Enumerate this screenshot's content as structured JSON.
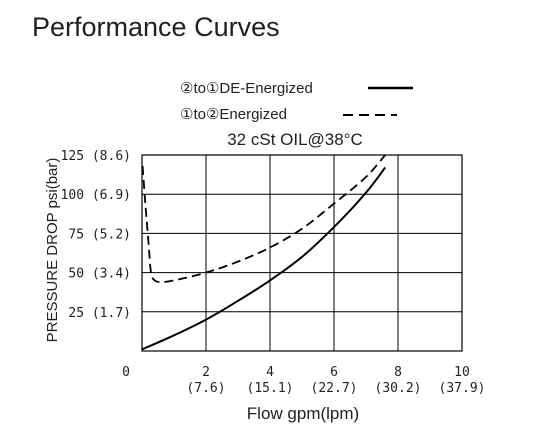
{
  "page_title": "Performance Curves",
  "chart_data": {
    "type": "line",
    "subtitle": "32 cSt OIL@38°C",
    "xlabel": "Flow gpm(lpm)",
    "ylabel": "PRESSURE DROP psi(bar)",
    "xlim": [
      0,
      10
    ],
    "ylim": [
      0,
      125
    ],
    "grid": true,
    "legend_position": "top",
    "x_ticks": [
      {
        "value": 0,
        "label": "0",
        "sublabel": ""
      },
      {
        "value": 2,
        "label": "2",
        "sublabel": "(7.6)"
      },
      {
        "value": 4,
        "label": "4",
        "sublabel": "(15.1)"
      },
      {
        "value": 6,
        "label": "6",
        "sublabel": "(22.7)"
      },
      {
        "value": 8,
        "label": "8",
        "sublabel": "(30.2)"
      },
      {
        "value": 10,
        "label": "10",
        "sublabel": "(37.9)"
      }
    ],
    "y_ticks": [
      {
        "value": 25,
        "label": "25 (1.7)"
      },
      {
        "value": 50,
        "label": "50 (3.4)"
      },
      {
        "value": 75,
        "label": "75 (5.2)"
      },
      {
        "value": 100,
        "label": "100 (6.9)"
      },
      {
        "value": 125,
        "label": "125 (8.6)"
      }
    ],
    "series": [
      {
        "name": "②to①DE-Energized",
        "style": "solid",
        "color": "#000000",
        "x": [
          0,
          1,
          2,
          3,
          4,
          5,
          6,
          7,
          7.6
        ],
        "y": [
          1,
          10,
          20,
          32,
          45,
          60,
          79,
          101,
          117
        ]
      },
      {
        "name": "①to②Energized",
        "style": "dashed",
        "color": "#000000",
        "x": [
          0.02,
          0.1,
          0.2,
          0.28,
          0.4,
          0.6,
          1,
          2,
          3,
          4,
          5,
          6,
          7,
          7.6
        ],
        "y": [
          118,
          95,
          70,
          50,
          45,
          44,
          45,
          50,
          57,
          66,
          78,
          94,
          111,
          125
        ]
      }
    ]
  }
}
